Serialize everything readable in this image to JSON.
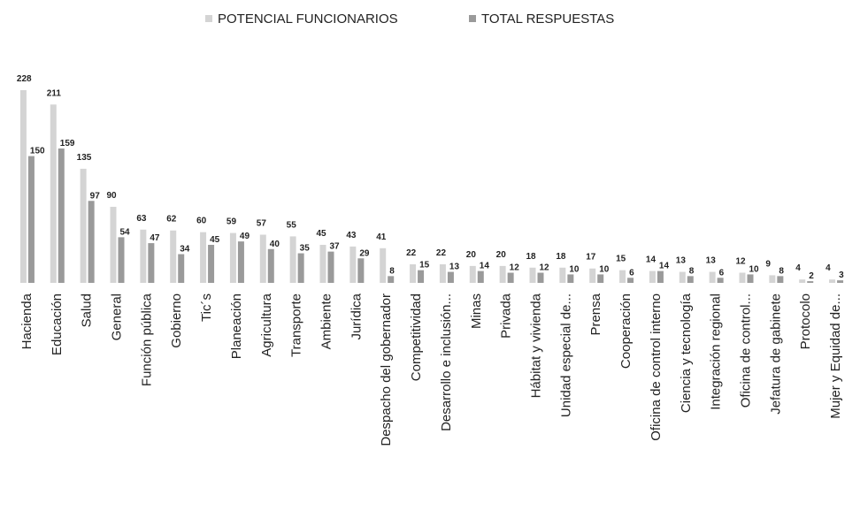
{
  "chart_data": {
    "type": "bar",
    "categories": [
      "Hacienda",
      "Educación",
      "Salud",
      "General",
      "Función pública",
      "Gobierno",
      "Tic´s",
      "Planeación",
      "Agricultura",
      "Transporte",
      "Ambiente",
      "Jurídica",
      "Despacho del gobernador",
      "Competitividad",
      "Desarrollo e inclusión...",
      "Minas",
      "Privada",
      "Hábitat y vivienda",
      "Unidad especial de...",
      "Prensa",
      "Cooperación",
      "Oficina de control interno",
      "Ciencia y tecnología",
      "Integración regional",
      "Oficina de control...",
      "Jefatura de gabinete",
      "Protocolo",
      "Mujer y Equidad de..."
    ],
    "series": [
      {
        "name": "POTENCIAL FUNCIONARIOS",
        "color": "#d4d4d4",
        "values": [
          228,
          211,
          135,
          90,
          63,
          62,
          60,
          59,
          57,
          55,
          45,
          43,
          41,
          22,
          22,
          20,
          20,
          18,
          18,
          17,
          15,
          14,
          13,
          13,
          12,
          9,
          4,
          4
        ]
      },
      {
        "name": "TOTAL RESPUESTAS",
        "color": "#9a9a9a",
        "values": [
          150,
          159,
          97,
          54,
          47,
          34,
          45,
          49,
          40,
          35,
          37,
          29,
          8,
          15,
          13,
          14,
          12,
          12,
          10,
          10,
          6,
          14,
          8,
          6,
          10,
          8,
          2,
          3
        ]
      }
    ],
    "legend": "top"
  }
}
